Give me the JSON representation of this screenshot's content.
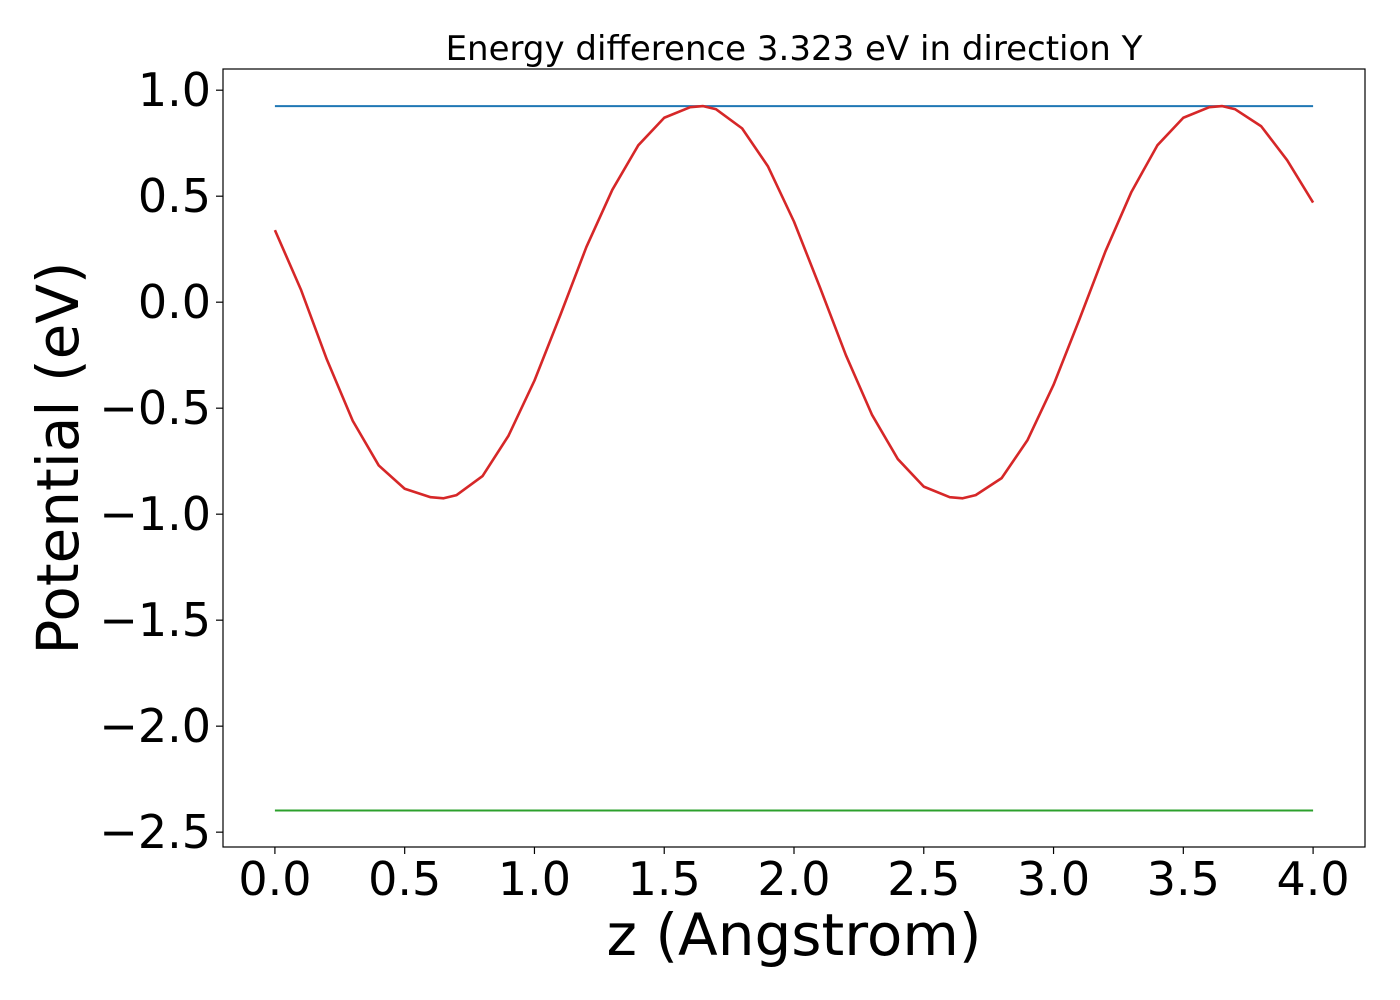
{
  "chart_data": {
    "type": "line",
    "title": "Energy difference 3.323 eV in direction Y",
    "xlabel": "z (Angstrom)",
    "ylabel": "Potential (eV)",
    "xlim": [
      -0.2,
      4.2
    ],
    "ylim": [
      -2.57,
      1.1
    ],
    "xticks": [
      0.0,
      0.5,
      1.0,
      1.5,
      2.0,
      2.5,
      3.0,
      3.5,
      4.0
    ],
    "xtick_labels": [
      "0.0",
      "0.5",
      "1.0",
      "1.5",
      "2.0",
      "2.5",
      "3.0",
      "3.5",
      "4.0"
    ],
    "yticks": [
      1.0,
      0.5,
      0.0,
      -0.5,
      -1.0,
      -1.5,
      -2.0,
      -2.5
    ],
    "ytick_labels": [
      "1.0",
      "0.5",
      "0.0",
      "−0.5",
      "−1.0",
      "−1.5",
      "−2.0",
      "−2.5"
    ],
    "grid": false,
    "series": [
      {
        "color": "#1f77b4",
        "x": [
          0.0,
          4.0
        ],
        "y": [
          0.925,
          0.925
        ]
      },
      {
        "color": "#2ca02c",
        "x": [
          0.0,
          4.0
        ],
        "y": [
          -2.398,
          -2.398
        ]
      },
      {
        "color": "#d62728",
        "x": [
          0.0,
          0.1,
          0.2,
          0.3,
          0.4,
          0.5,
          0.6,
          0.65,
          0.7,
          0.8,
          0.9,
          1.0,
          1.1,
          1.2,
          1.3,
          1.4,
          1.5,
          1.6,
          1.65,
          1.7,
          1.8,
          1.9,
          2.0,
          2.1,
          2.2,
          2.3,
          2.4,
          2.5,
          2.6,
          2.65,
          2.7,
          2.8,
          2.9,
          3.0,
          3.1,
          3.2,
          3.3,
          3.4,
          3.5,
          3.6,
          3.65,
          3.7,
          3.8,
          3.9,
          4.0
        ],
        "y": [
          0.34,
          0.06,
          -0.27,
          -0.56,
          -0.77,
          -0.88,
          -0.92,
          -0.925,
          -0.91,
          -0.82,
          -0.63,
          -0.37,
          -0.06,
          0.26,
          0.53,
          0.74,
          0.87,
          0.92,
          0.925,
          0.91,
          0.82,
          0.64,
          0.38,
          0.07,
          -0.25,
          -0.53,
          -0.74,
          -0.87,
          -0.92,
          -0.925,
          -0.91,
          -0.83,
          -0.65,
          -0.39,
          -0.08,
          0.24,
          0.52,
          0.74,
          0.87,
          0.92,
          0.925,
          0.91,
          0.83,
          0.67,
          0.47
        ]
      }
    ]
  }
}
